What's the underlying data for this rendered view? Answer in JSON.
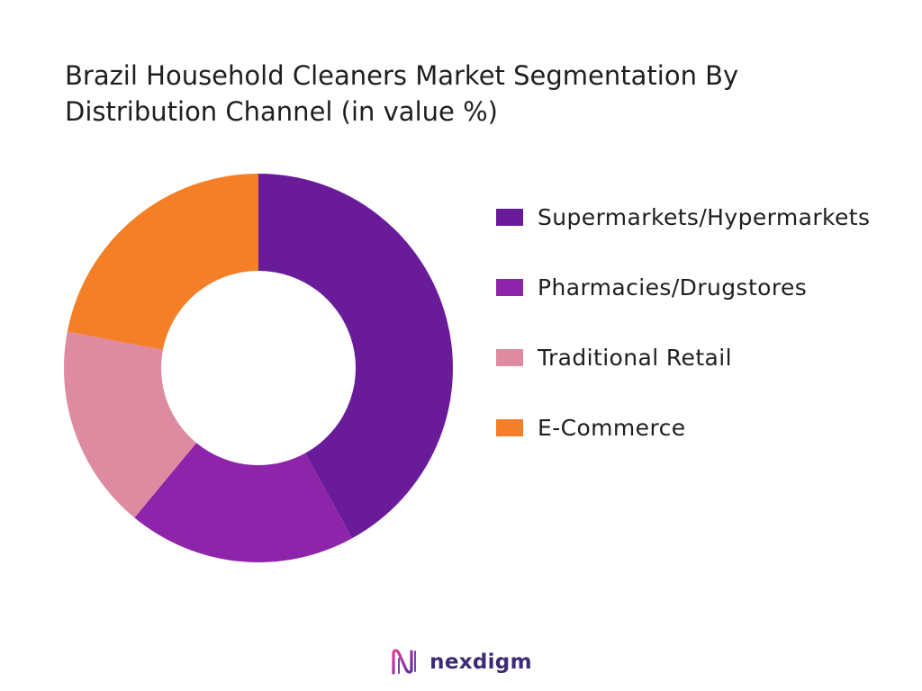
{
  "title": {
    "line1": "Brazil Household Cleaners Market Segmentation By",
    "line2": "Distribution Channel (in value %)"
  },
  "chart_data": {
    "type": "pie",
    "donut": true,
    "title": "Brazil Household Cleaners Market Segmentation By Distribution Channel (in value %)",
    "categories": [
      "Supermarkets/Hypermarkets",
      "Pharmacies/Drugstores",
      "Traditional Retail",
      "E-Commerce"
    ],
    "values": [
      42,
      19,
      17,
      22
    ],
    "colors": [
      "#6a1b9a",
      "#8e24aa",
      "#de8aa0",
      "#f47f26"
    ],
    "legend": "right"
  },
  "legend": {
    "items": [
      {
        "label": "Supermarkets/Hypermarkets",
        "color": "#6a1b9a"
      },
      {
        "label": "Pharmacies/Drugstores",
        "color": "#8e24aa"
      },
      {
        "label": "Traditional Retail",
        "color": "#de8aa0"
      },
      {
        "label": "E-Commerce",
        "color": "#f47f26"
      }
    ]
  },
  "footer": {
    "logo_icon": "nexdigm-logo-icon",
    "brand": "nexdigm"
  }
}
